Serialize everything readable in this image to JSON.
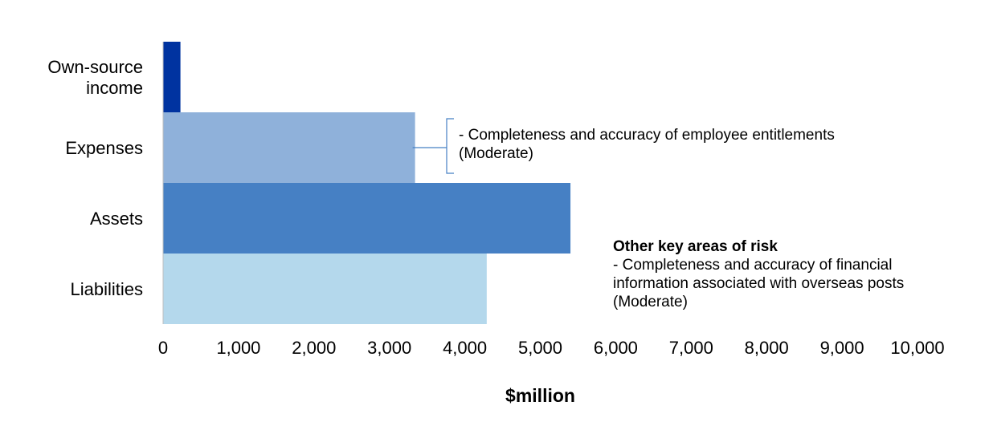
{
  "chart_data": {
    "type": "bar",
    "orientation": "horizontal",
    "categories": [
      "Own-source income",
      "Expenses",
      "Assets",
      "Liabilities"
    ],
    "category_lines": [
      [
        "Own-source",
        "income"
      ],
      [
        "Expenses"
      ],
      [
        "Assets"
      ],
      [
        "Liabilities"
      ]
    ],
    "values": [
      230,
      3340,
      5400,
      4290
    ],
    "colors": [
      "#0033A0",
      "#8FB1DA",
      "#4680C4",
      "#B4D8EC"
    ],
    "xlabel": "$million",
    "xlim": [
      0,
      10000
    ],
    "xticks": [
      "0",
      "1,000",
      "2,000",
      "3,000",
      "4,000",
      "5,000",
      "6,000",
      "7,000",
      "8,000",
      "9,000",
      "10,000"
    ],
    "grid": false,
    "legend": "none"
  },
  "annotations": {
    "expenses_note": {
      "line1": "- Completeness and accuracy of employee entitlements",
      "line2": "(Moderate)"
    },
    "other_risks": {
      "heading": "Other key areas of risk",
      "line1": "- Completeness and accuracy of financial",
      "line2": "information associated with overseas posts",
      "line3": "(Moderate)"
    }
  }
}
